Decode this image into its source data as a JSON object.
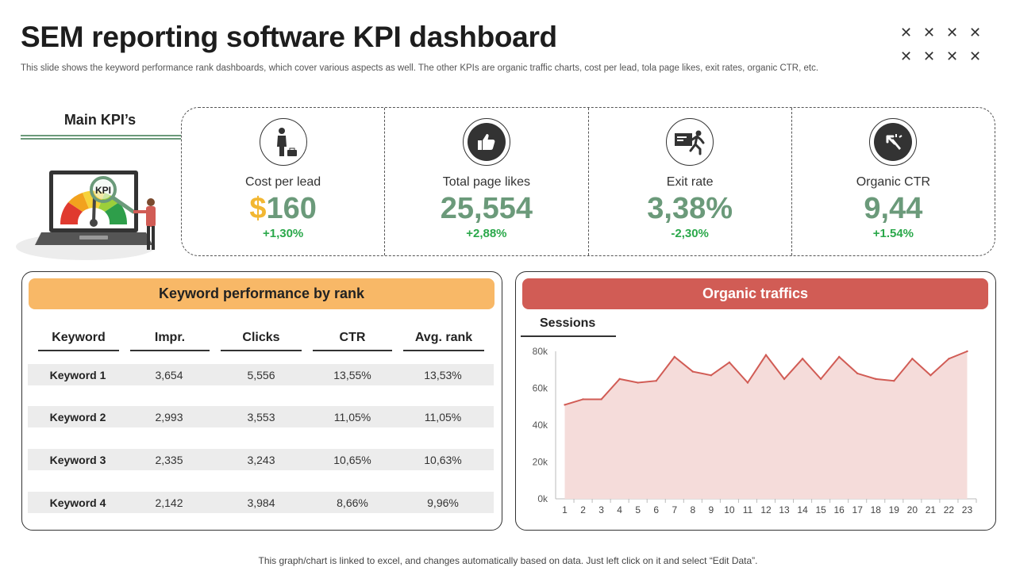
{
  "header": {
    "title": "SEM reporting software KPI dashboard",
    "subtitle": "This slide shows the keyword performance rank dashboards, which cover various aspects as well. The other KPIs are organic traffic charts, cost per lead, tola page likes, exit rates, organic CTR, etc."
  },
  "decor_marks": [
    "✕",
    "✕",
    "✕",
    "✕",
    "✕",
    "✕",
    "✕",
    "✕"
  ],
  "main_kpis": {
    "label": "Main KPI’s",
    "illustration_text": "KPI"
  },
  "kpis": [
    {
      "label": "Cost per lead",
      "prefix": "$",
      "value": "160",
      "change": "+1,30%",
      "icon": "person-with-briefcase-icon"
    },
    {
      "label": "Total page likes",
      "prefix": "",
      "value": "25,554",
      "change": "+2,88%",
      "icon": "thumbs-up-icon"
    },
    {
      "label": "Exit rate",
      "prefix": "",
      "value": "3,38%",
      "change": "-2,30%",
      "icon": "exit-running-man-icon"
    },
    {
      "label": "Organic CTR",
      "prefix": "",
      "value": "9,44",
      "change": "+1.54%",
      "icon": "cursor-click-icon"
    }
  ],
  "keyword_panel": {
    "title": "Keyword performance by rank",
    "columns": [
      "Keyword",
      "Impr.",
      "Clicks",
      "CTR",
      "Avg. rank"
    ],
    "rows": [
      [
        "Keyword 1",
        "3,654",
        "5,556",
        "13,55%",
        "13,53%"
      ],
      [
        "Keyword 2",
        "2,993",
        "3,553",
        "11,05%",
        "11,05%"
      ],
      [
        "Keyword 3",
        "2,335",
        "3,243",
        "10,65%",
        "10,63%"
      ],
      [
        "Keyword 4",
        "2,142",
        "3,984",
        "8,66%",
        "9,96%"
      ]
    ]
  },
  "traffic_panel": {
    "title": "Organic traffics",
    "sessions_label": "Sessions"
  },
  "chart_data": {
    "type": "area",
    "x": [
      1,
      2,
      3,
      4,
      5,
      6,
      7,
      8,
      9,
      10,
      11,
      12,
      13,
      14,
      15,
      16,
      17,
      18,
      19,
      20,
      21,
      22,
      23
    ],
    "y_tick_labels": [
      "0k",
      "20k",
      "40k",
      "60k",
      "80k"
    ],
    "series": [
      {
        "values": [
          51000,
          54000,
          54000,
          65000,
          63000,
          64000,
          77000,
          69000,
          67000,
          74000,
          63000,
          78000,
          65000,
          76000,
          65000,
          77000,
          68000,
          65000,
          64000,
          76000,
          67000,
          76000,
          80000
        ]
      }
    ],
    "ylim": [
      0,
      80000
    ],
    "colors": {
      "line": "#d15c55",
      "fill": "#f5dcda"
    },
    "grid": false
  },
  "footer": {
    "note": "This graph/chart is linked to excel, and changes automatically based on data. Just left click on it and select “Edit Data”."
  },
  "colors": {
    "accent_green": "#6b9a7a",
    "accent_gold": "#f2b732",
    "positive": "#2aa84a",
    "orange_banner": "#f8b867",
    "red_banner": "#d15c55"
  }
}
